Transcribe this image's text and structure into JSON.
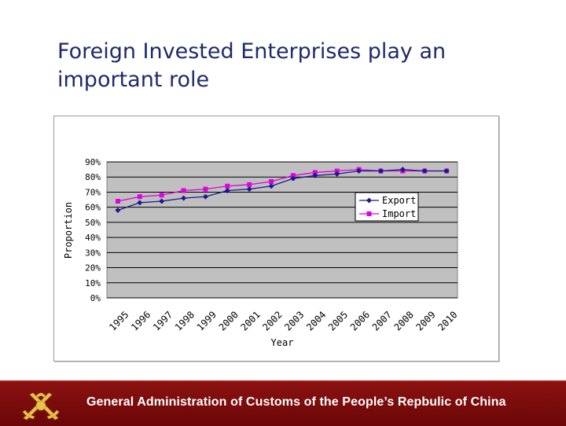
{
  "slide": {
    "title": "Foreign Invested Enterprises  play an\nimportant role"
  },
  "footer": {
    "text": "General Administration of Customs of the People’s Repbulic of China",
    "logo_icon": "customs-emblem-icon"
  },
  "colors": {
    "export": "#1a1a8c",
    "import": "#e000e0",
    "plot_bg": "#c0c0c0",
    "footer_bg": "#7a0c0c"
  },
  "chart_data": {
    "type": "line",
    "title": "",
    "xlabel": "Year",
    "ylabel": "Proportion",
    "categories": [
      "1995",
      "1996",
      "1997",
      "1998",
      "1999",
      "2000",
      "2001",
      "2002",
      "2003",
      "2004",
      "2005",
      "2006",
      "2007",
      "2008",
      "2009",
      "2010"
    ],
    "yticks": [
      "0%",
      "10%",
      "20%",
      "30%",
      "40%",
      "50%",
      "60%",
      "70%",
      "80%",
      "90%"
    ],
    "ylim": [
      0,
      90
    ],
    "grid": true,
    "legend": "right",
    "series": [
      {
        "name": "Export",
        "marker": "diamond",
        "values": [
          58,
          63,
          64,
          66,
          67,
          71,
          72,
          74,
          79,
          81,
          82,
          84,
          84,
          85,
          84,
          84
        ]
      },
      {
        "name": "Import",
        "marker": "square",
        "values": [
          64,
          67,
          68,
          71,
          72,
          74,
          75,
          77,
          81,
          83,
          84,
          85,
          84,
          84,
          84,
          84
        ]
      }
    ]
  }
}
